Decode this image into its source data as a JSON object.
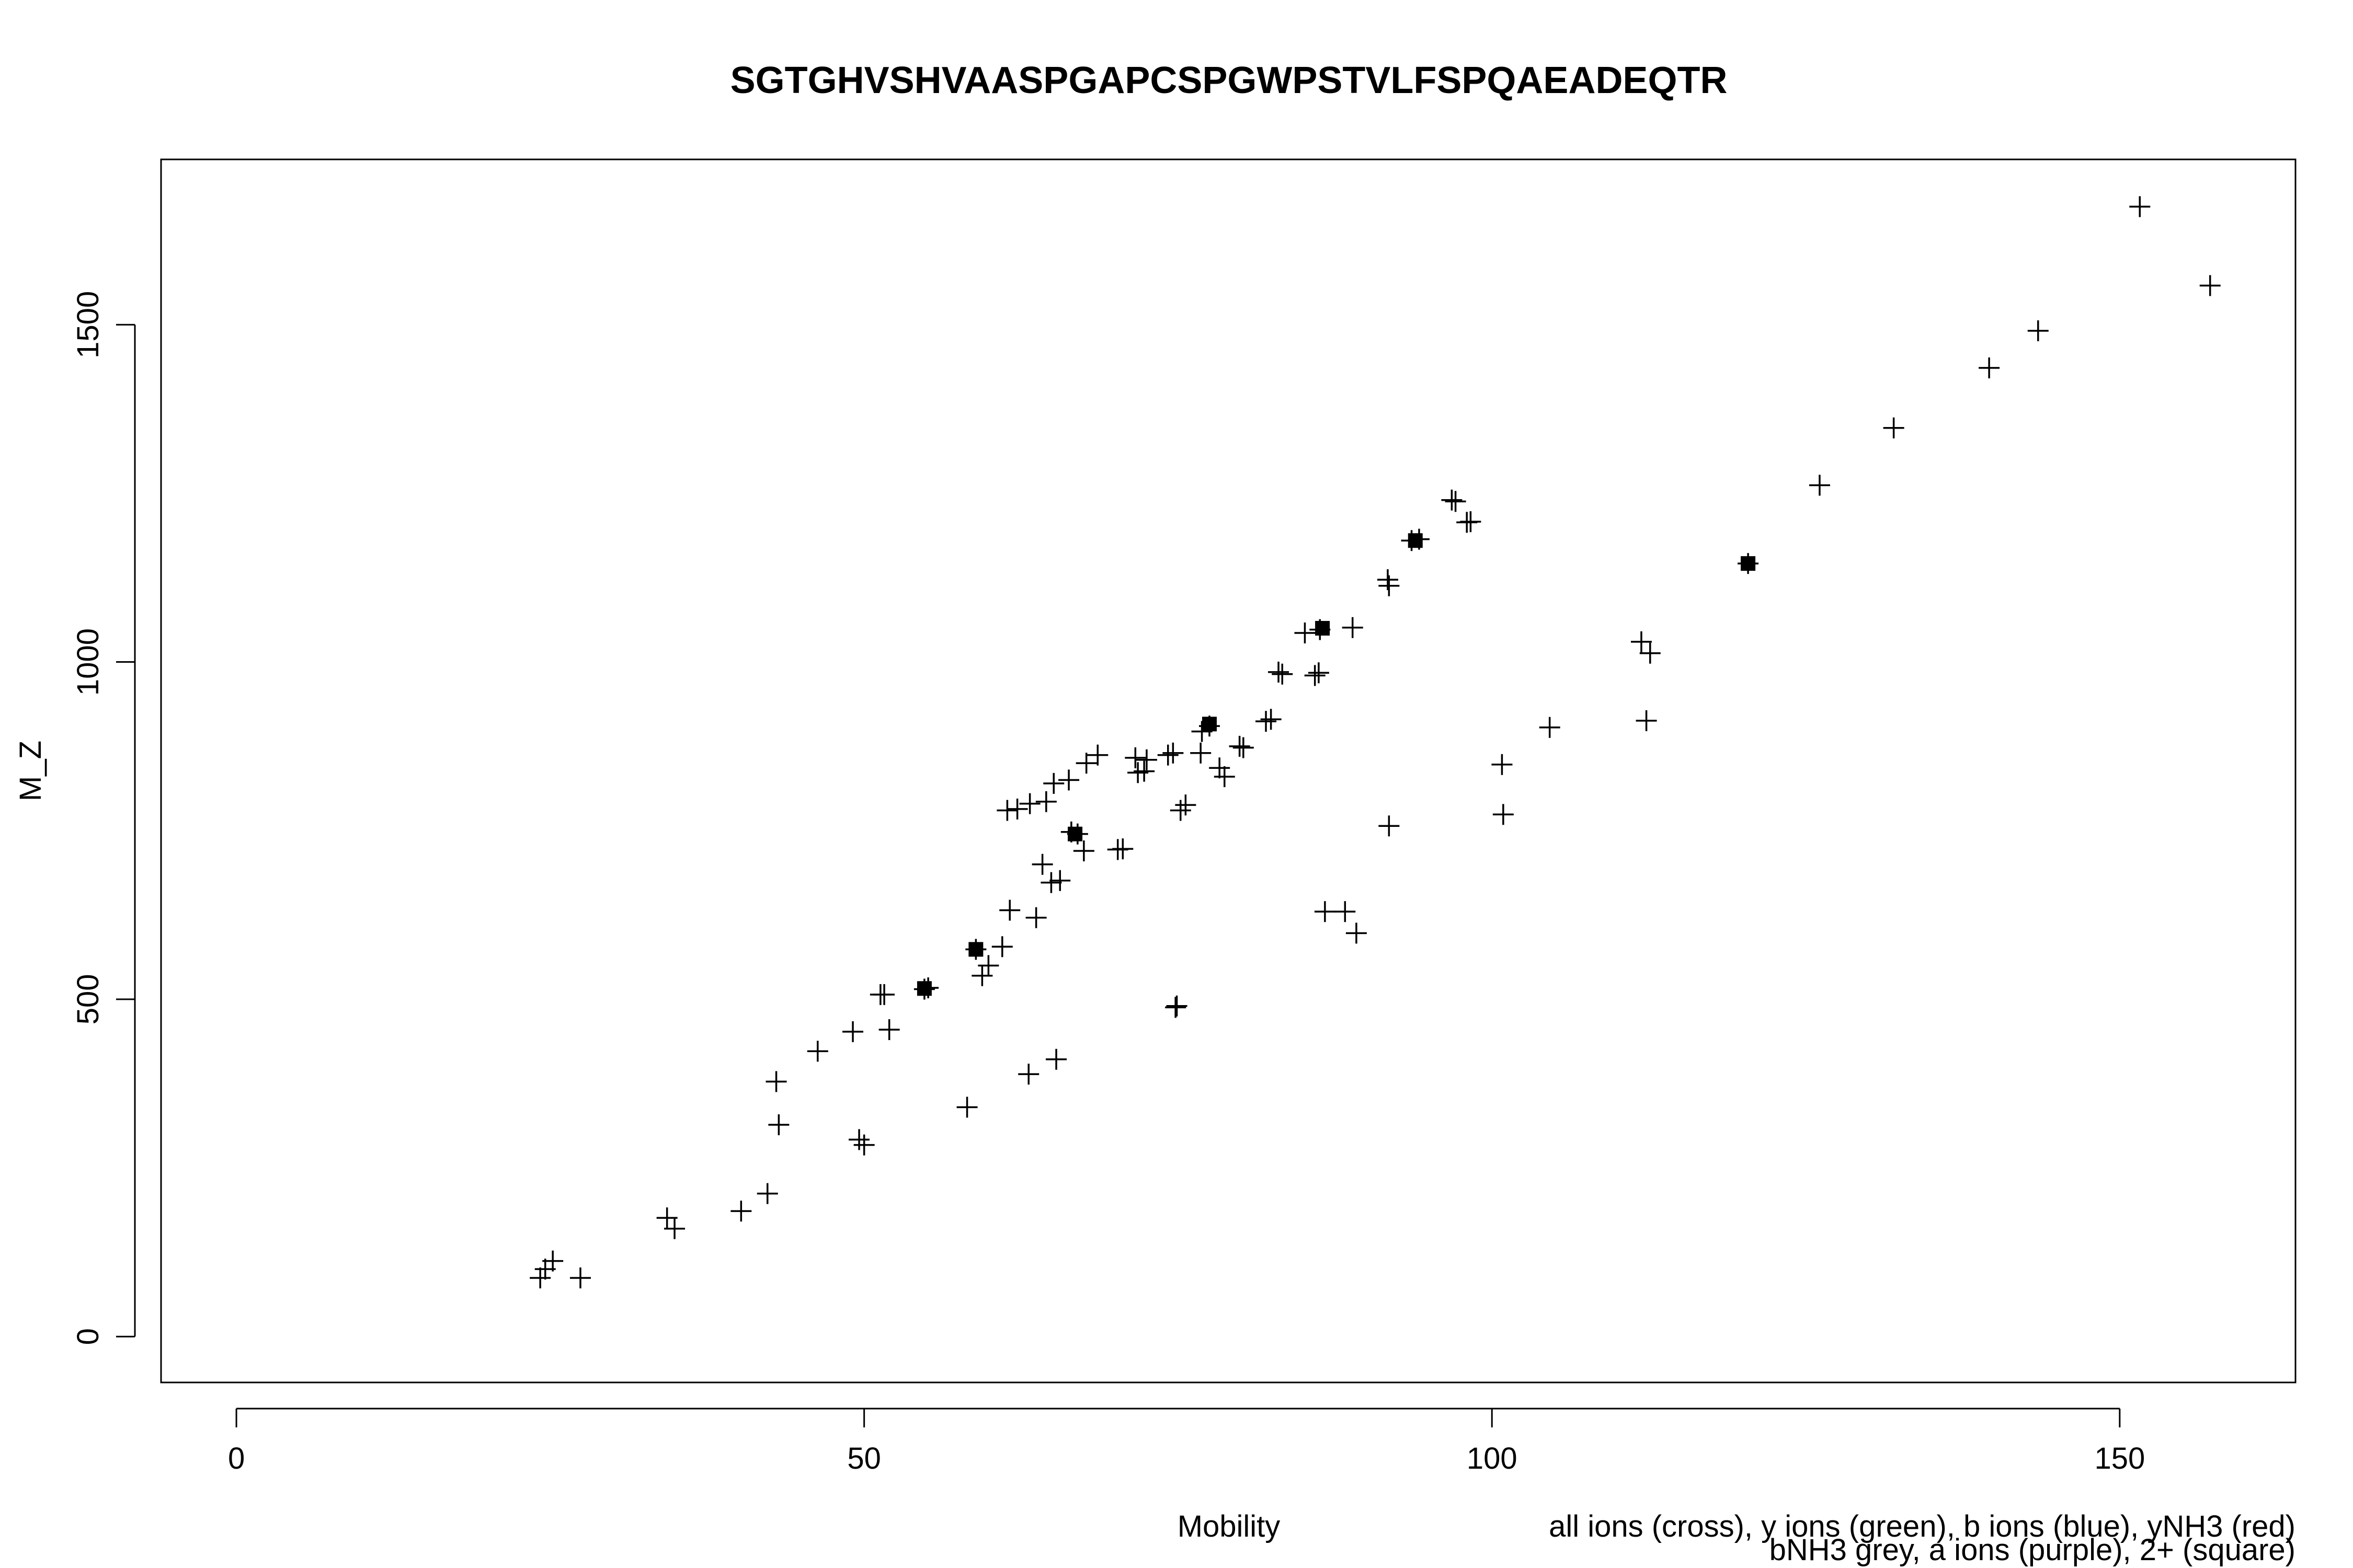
{
  "chart_data": {
    "type": "scatter",
    "title": "SGTGHVSHVAASPGAPCSPGWPSTVLFSPQAEADEQTR",
    "xlabel": "Mobility",
    "ylabel": "M_Z",
    "xlim": [
      -6,
      164
    ],
    "ylim": [
      -68,
      1745
    ],
    "x_ticks": [
      0,
      50,
      100,
      150
    ],
    "y_ticks": [
      0,
      500,
      1000,
      1500
    ],
    "grid": false,
    "legend": {
      "placement": "bottom-right",
      "lines": [
        "all ions (cross), y ions (green), b ions (blue), yNH3 (red)",
        "bNH3 grey, a ions (purple), 2+ (square)"
      ]
    },
    "series": [
      {
        "marker": "cross",
        "color": "#000000",
        "points": [
          [
            24.2,
            87
          ],
          [
            24.6,
            100
          ],
          [
            25.2,
            112
          ],
          [
            27.4,
            87
          ],
          [
            34.3,
            176
          ],
          [
            34.9,
            160
          ],
          [
            40.2,
            186
          ],
          [
            42.3,
            212
          ],
          [
            43.2,
            314
          ],
          [
            43.0,
            378
          ],
          [
            46.3,
            423
          ],
          [
            49.1,
            452
          ],
          [
            49.6,
            292
          ],
          [
            50.0,
            284
          ],
          [
            51.3,
            507
          ],
          [
            51.6,
            507
          ],
          [
            52.0,
            455
          ],
          [
            54.8,
            515
          ],
          [
            55.1,
            517
          ],
          [
            58.2,
            340
          ],
          [
            58.9,
            574
          ],
          [
            59.4,
            535
          ],
          [
            59.9,
            550
          ],
          [
            61.0,
            578
          ],
          [
            61.6,
            632
          ],
          [
            61.4,
            780
          ],
          [
            62.2,
            782
          ],
          [
            63.1,
            389
          ],
          [
            63.2,
            790
          ],
          [
            63.7,
            621
          ],
          [
            64.2,
            700
          ],
          [
            64.5,
            793
          ],
          [
            64.9,
            673
          ],
          [
            65.1,
            820
          ],
          [
            65.3,
            411
          ],
          [
            65.6,
            676
          ],
          [
            66.3,
            825
          ],
          [
            66.5,
            748
          ],
          [
            67.0,
            745
          ],
          [
            67.5,
            720
          ],
          [
            67.7,
            850
          ],
          [
            68.6,
            862
          ],
          [
            70.2,
            722
          ],
          [
            70.6,
            723
          ],
          [
            71.6,
            858
          ],
          [
            71.8,
            836
          ],
          [
            72.3,
            838
          ],
          [
            72.5,
            855
          ],
          [
            74.2,
            862
          ],
          [
            74.6,
            865
          ],
          [
            74.8,
            488
          ],
          [
            74.9,
            490
          ],
          [
            75.2,
            780
          ],
          [
            75.6,
            788
          ],
          [
            76.8,
            865
          ],
          [
            76.9,
            897
          ],
          [
            77.5,
            905
          ],
          [
            78.3,
            843
          ],
          [
            78.7,
            830
          ],
          [
            79.9,
            875
          ],
          [
            80.2,
            873
          ],
          [
            82.0,
            912
          ],
          [
            82.4,
            915
          ],
          [
            83.0,
            985
          ],
          [
            83.3,
            982
          ],
          [
            85.1,
            1043
          ],
          [
            85.9,
            980
          ],
          [
            86.3,
            1048
          ],
          [
            86.2,
            984
          ],
          [
            86.7,
            630
          ],
          [
            88.3,
            630
          ],
          [
            88.9,
            1051
          ],
          [
            89.2,
            598
          ],
          [
            91.7,
            1122
          ],
          [
            91.8,
            1113
          ],
          [
            91.8,
            757
          ],
          [
            93.6,
            1180
          ],
          [
            94.2,
            1182
          ],
          [
            96.8,
            1240
          ],
          [
            97.1,
            1238
          ],
          [
            98.0,
            1207
          ],
          [
            98.3,
            1208
          ],
          [
            100.8,
            848
          ],
          [
            100.9,
            774
          ],
          [
            104.6,
            903
          ],
          [
            111.9,
            1030
          ],
          [
            112.3,
            913
          ],
          [
            112.6,
            1013
          ],
          [
            120.4,
            1146
          ],
          [
            126.1,
            1262
          ],
          [
            132.0,
            1347
          ],
          [
            139.6,
            1436
          ],
          [
            143.5,
            1491
          ],
          [
            151.6,
            1675
          ],
          [
            157.2,
            1558
          ]
        ]
      },
      {
        "marker": "square",
        "color": "#000000",
        "points": [
          [
            54.8,
            516
          ],
          [
            58.9,
            574
          ],
          [
            66.8,
            745
          ],
          [
            77.5,
            908
          ],
          [
            86.5,
            1050
          ],
          [
            93.9,
            1180
          ],
          [
            120.4,
            1146
          ]
        ]
      }
    ]
  }
}
